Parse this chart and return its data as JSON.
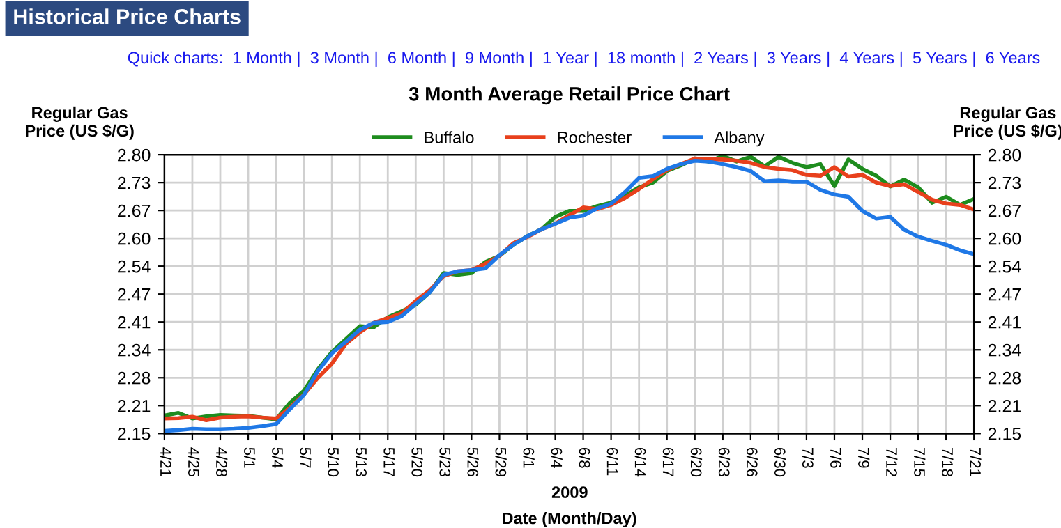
{
  "chart_data": {
    "type": "line",
    "title": "3 Month Average Retail Price Chart",
    "xlabel": "Date (Month/Day)",
    "ylabel": "Regular Gas\nPrice (US $/G)",
    "y2label": "Regular Gas\nPrice (US $/G)",
    "annotations": [
      "Historical Price Charts",
      "Quick charts:  1 Month |  3 Month |  6 Month |  9 Month |  1 Year |  18 month |  2 Years |  3 Years |  4 Years |  5 Years |  6 Years",
      "2009"
    ],
    "categories": [
      "4/21",
      null,
      "4/25",
      null,
      "4/28",
      null,
      "5/1",
      null,
      "5/4",
      null,
      "5/7",
      null,
      "5/10",
      null,
      "5/13",
      null,
      "5/17",
      null,
      "5/20",
      null,
      "5/23",
      null,
      "5/26",
      null,
      "5/29",
      null,
      "6/1",
      null,
      "6/4",
      null,
      "6/8",
      null,
      "6/11",
      null,
      "6/14",
      null,
      "6/17",
      null,
      "6/20",
      null,
      "6/23",
      null,
      "6/26",
      null,
      "6/30",
      null,
      "7/3",
      null,
      "7/6",
      null,
      "7/9",
      null,
      "7/12",
      null,
      "7/15",
      null,
      "7/18",
      null,
      "7/21"
    ],
    "ylim": [
      2.15,
      2.8
    ],
    "yticks": [
      2.15,
      {
        "value": 2.215,
        "label": "2.21"
      },
      2.28,
      {
        "value": 2.345,
        "label": "2.34"
      },
      2.41,
      {
        "value": 2.475,
        "label": "2.47"
      },
      2.54,
      {
        "value": 2.605,
        "label": "2.60"
      },
      2.67,
      {
        "value": 2.735,
        "label": "2.73"
      },
      {
        "value": 2.8,
        "label": "2.80"
      }
    ],
    "y2lim": [
      2.15,
      2.8
    ],
    "y2ticks": [
      2.15,
      {
        "value": 2.215,
        "label": "2.21"
      },
      2.28,
      {
        "value": 2.345,
        "label": "2.34"
      },
      2.41,
      {
        "value": 2.475,
        "label": "2.47"
      },
      2.54,
      {
        "value": 2.605,
        "label": "2.60"
      },
      2.67,
      {
        "value": 2.735,
        "label": "2.73"
      },
      {
        "value": 2.8,
        "label": "2.80"
      }
    ],
    "grid": true,
    "legend": "top",
    "marker": "none",
    "line_style": "solid",
    "series": [
      {
        "name": "Buffalo",
        "color": "#1e8c1e",
        "values": [
          2.192,
          2.198,
          2.185,
          2.19,
          2.193,
          2.192,
          2.191,
          2.187,
          2.183,
          2.222,
          2.25,
          2.3,
          2.34,
          2.37,
          2.4,
          2.398,
          2.421,
          2.435,
          2.45,
          2.479,
          2.524,
          2.52,
          2.524,
          2.55,
          2.564,
          2.59,
          2.61,
          2.626,
          2.655,
          2.669,
          2.669,
          2.68,
          2.688,
          2.705,
          2.724,
          2.735,
          2.762,
          2.775,
          2.791,
          2.784,
          2.797,
          2.784,
          2.795,
          2.773,
          2.795,
          2.781,
          2.771,
          2.778,
          2.727,
          2.789,
          2.767,
          2.751,
          2.726,
          2.742,
          2.724,
          2.688,
          2.702,
          2.683,
          2.697
        ]
      },
      {
        "name": "Rochester",
        "color": "#e8401c",
        "values": [
          2.185,
          2.186,
          2.189,
          2.181,
          2.187,
          2.189,
          2.19,
          2.187,
          2.185,
          2.21,
          2.241,
          2.28,
          2.313,
          2.359,
          2.386,
          2.408,
          2.419,
          2.43,
          2.459,
          2.484,
          2.517,
          2.528,
          2.531,
          2.546,
          2.564,
          2.594,
          2.608,
          2.626,
          2.639,
          2.659,
          2.677,
          2.673,
          2.683,
          2.699,
          2.72,
          2.743,
          2.764,
          2.778,
          2.791,
          2.789,
          2.789,
          2.786,
          2.781,
          2.771,
          2.767,
          2.764,
          2.753,
          2.751,
          2.771,
          2.749,
          2.753,
          2.735,
          2.727,
          2.731,
          2.713,
          2.695,
          2.686,
          2.683,
          2.672
        ]
      },
      {
        "name": "Albany",
        "color": "#1f78e6",
        "values": [
          2.156,
          2.158,
          2.161,
          2.16,
          2.16,
          2.161,
          2.163,
          2.167,
          2.172,
          2.207,
          2.24,
          2.296,
          2.337,
          2.364,
          2.392,
          2.408,
          2.41,
          2.424,
          2.452,
          2.479,
          2.52,
          2.528,
          2.531,
          2.535,
          2.566,
          2.59,
          2.61,
          2.626,
          2.639,
          2.653,
          2.658,
          2.675,
          2.686,
          2.713,
          2.746,
          2.75,
          2.767,
          2.778,
          2.786,
          2.784,
          2.778,
          2.771,
          2.762,
          2.738,
          2.74,
          2.737,
          2.737,
          2.718,
          2.707,
          2.702,
          2.669,
          2.651,
          2.655,
          2.625,
          2.609,
          2.599,
          2.59,
          2.577,
          2.568
        ]
      }
    ]
  }
}
